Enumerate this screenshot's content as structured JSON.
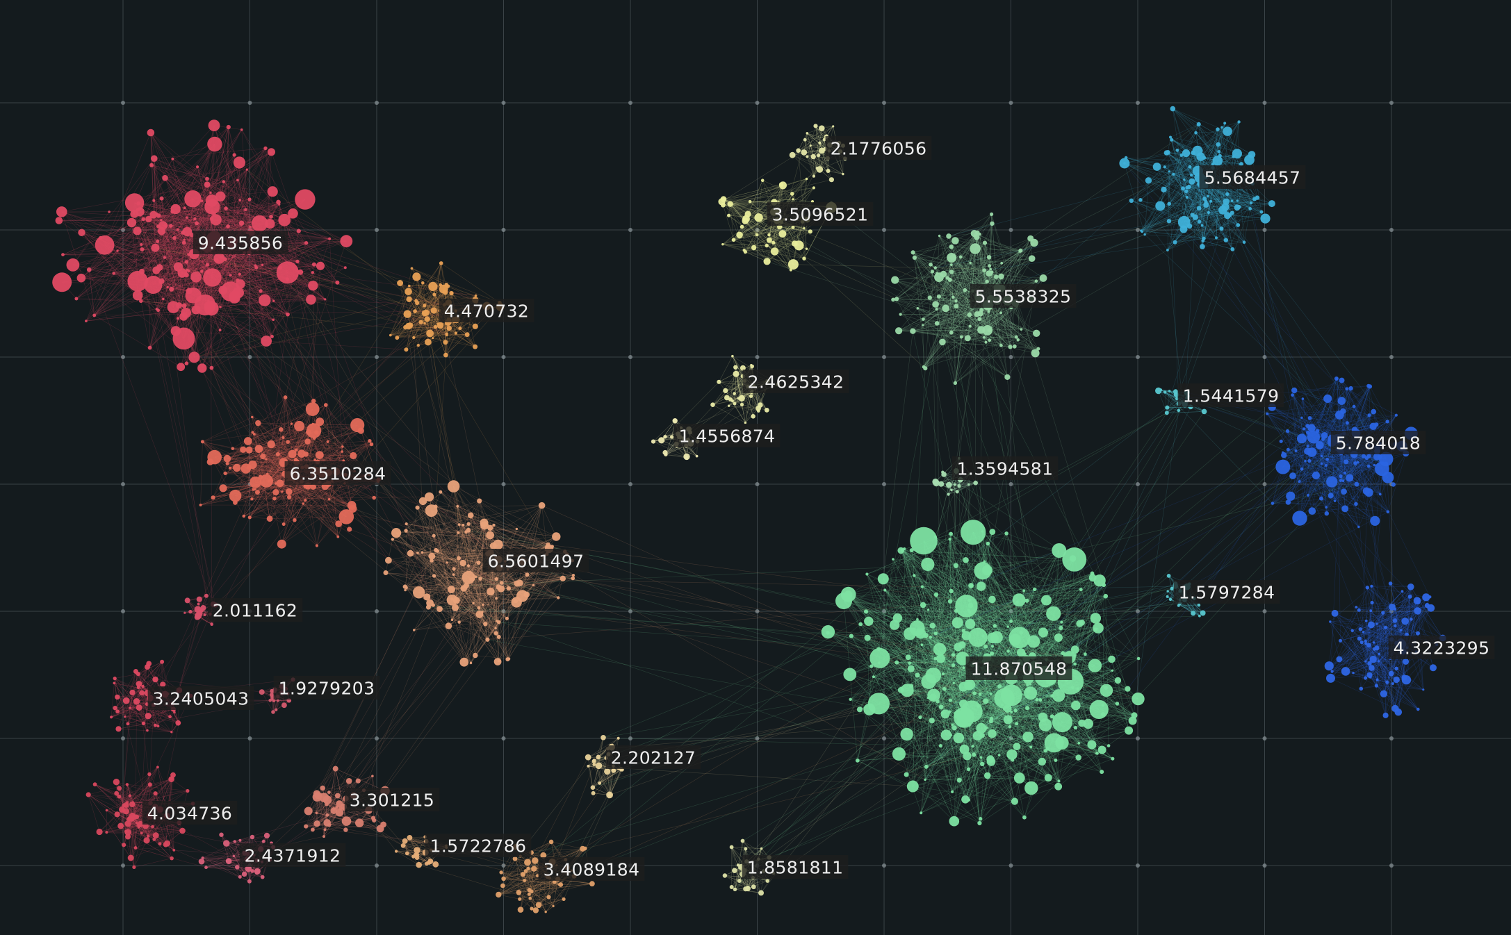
{
  "network": {
    "background": "#141b1e",
    "grid_color": "#5a6469",
    "clusters": [
      {
        "id": "c1",
        "value": "9.435856",
        "color": "#e04a63"
      },
      {
        "id": "c2",
        "value": "4.470732",
        "color": "#e8a055"
      },
      {
        "id": "c3",
        "value": "6.3510284",
        "color": "#e36a5a"
      },
      {
        "id": "c4",
        "value": "6.5601497",
        "color": "#e8a27a"
      },
      {
        "id": "c5",
        "value": "2.011162",
        "color": "#d9506a"
      },
      {
        "id": "c6",
        "value": "3.2405043",
        "color": "#de4a62"
      },
      {
        "id": "c7",
        "value": "1.9279203",
        "color": "#d45a6e"
      },
      {
        "id": "c8",
        "value": "4.034736",
        "color": "#d8485e"
      },
      {
        "id": "c9",
        "value": "2.4371912",
        "color": "#d9607a"
      },
      {
        "id": "c10",
        "value": "3.301215",
        "color": "#d98070"
      },
      {
        "id": "c11",
        "value": "1.5722786",
        "color": "#e6ae78"
      },
      {
        "id": "c12",
        "value": "3.4089184",
        "color": "#e0a06a"
      },
      {
        "id": "c13",
        "value": "2.202127",
        "color": "#e8d29a"
      },
      {
        "id": "c14",
        "value": "2.1776056",
        "color": "#e4e6a8"
      },
      {
        "id": "c15",
        "value": "3.5096521",
        "color": "#e9ed9c"
      },
      {
        "id": "c16",
        "value": "2.4625342",
        "color": "#e8eaa6"
      },
      {
        "id": "c17",
        "value": "1.4556874",
        "color": "#ece8b0"
      },
      {
        "id": "c18",
        "value": "5.5538325",
        "color": "#9ad9a8"
      },
      {
        "id": "c19",
        "value": "1.3594581",
        "color": "#a6dcb0"
      },
      {
        "id": "c20",
        "value": "11.870548",
        "color": "#7de2a2"
      },
      {
        "id": "c21",
        "value": "1.8581811",
        "color": "#dde2a8"
      },
      {
        "id": "c22",
        "value": "5.5684457",
        "color": "#3fb0d8"
      },
      {
        "id": "c23",
        "value": "1.5441579",
        "color": "#58c8d0"
      },
      {
        "id": "c24",
        "value": "5.784018",
        "color": "#2a64e0"
      },
      {
        "id": "c25",
        "value": "1.5797284",
        "color": "#58c8d0"
      },
      {
        "id": "c26",
        "value": "4.3223295",
        "color": "#2e66e4"
      }
    ]
  }
}
